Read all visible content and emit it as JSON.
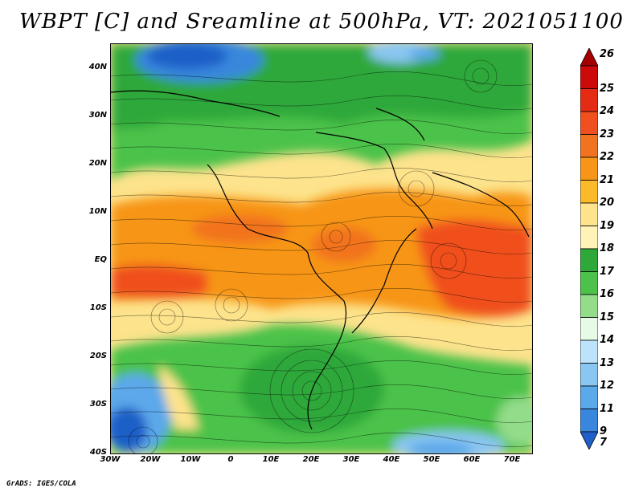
{
  "title": "WBPT [C] and Sreamline at 500hPa, VT: 2021051100",
  "credit": "GrADS: IGES/COLA",
  "lat_labels": [
    "40N",
    "30N",
    "20N",
    "10N",
    "EQ",
    "10S",
    "20S",
    "30S",
    "40S"
  ],
  "lon_labels": [
    "30W",
    "20W",
    "10W",
    "0",
    "10E",
    "20E",
    "30E",
    "40E",
    "50E",
    "60E",
    "70E"
  ],
  "colorbar": {
    "labels": [
      "26",
      "25",
      "24",
      "23",
      "22",
      "21",
      "20",
      "19",
      "18",
      "17",
      "16",
      "15",
      "14",
      "13",
      "12",
      "11",
      "9",
      "7"
    ],
    "colors": [
      "#a50000",
      "#cc0a0a",
      "#e62b14",
      "#f0501e",
      "#f2731f",
      "#f79518",
      "#fbba2a",
      "#fde38c",
      "#fff3b8",
      "#2fa83a",
      "#4cc24a",
      "#93dc8a",
      "#e6fbe6",
      "#bde3fa",
      "#8ac6f2",
      "#5ba8ea",
      "#3887dd",
      "#1f5fc7"
    ]
  }
}
